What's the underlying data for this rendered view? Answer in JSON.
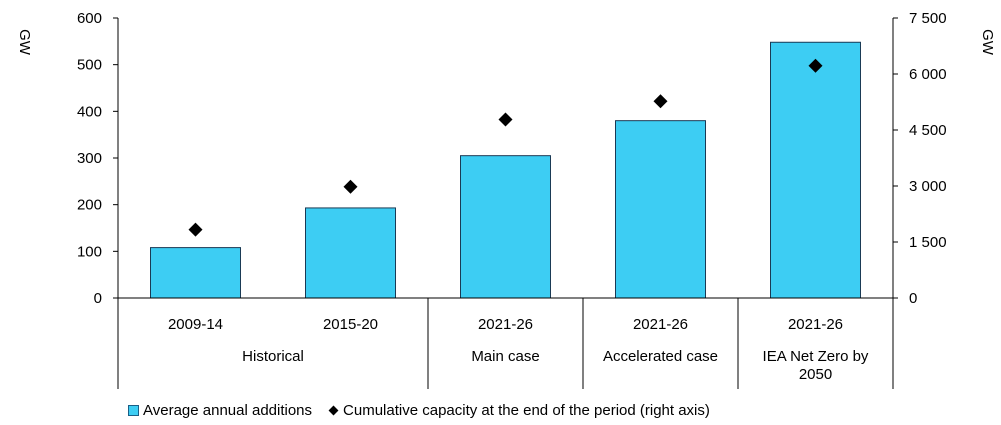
{
  "chart_data": {
    "type": "bar",
    "left_axis_label": "GW",
    "right_axis_label": "GW",
    "left_ticks": [
      "0",
      "100",
      "200",
      "300",
      "400",
      "500",
      "600"
    ],
    "right_ticks": [
      "0",
      "1 500",
      "3 000",
      "4 500",
      "6 000",
      "7 500"
    ],
    "ylim_left": [
      0,
      600
    ],
    "ylim_right": [
      0,
      7500
    ],
    "categories": [
      "2009-14",
      "2015-20",
      "2021-26",
      "2021-26",
      "2021-26"
    ],
    "groups": [
      {
        "label": "Historical",
        "span": 2
      },
      {
        "label": "Main case",
        "span": 1
      },
      {
        "label": "Accelerated case",
        "span": 1
      },
      {
        "label": "IEA Net Zero by 2050",
        "span": 1,
        "lines": [
          "IEA Net Zero by",
          "2050"
        ]
      }
    ],
    "series": [
      {
        "name": "Average annual additions",
        "type": "bar",
        "axis": "left",
        "values": [
          108,
          193,
          305,
          380,
          548
        ],
        "color": "#3dcdf3"
      },
      {
        "name": "Cumulative capacity at the end of the period (right axis)",
        "type": "scatter",
        "axis": "right",
        "marker": "diamond",
        "values": [
          1830,
          2980,
          4780,
          5270,
          6220
        ],
        "color": "#000000"
      }
    ],
    "grid": false,
    "legend_position": "bottom"
  },
  "legend": {
    "bar_label": "Average annual additions",
    "diamond_label": "Cumulative capacity at the end of the period (right axis)"
  }
}
